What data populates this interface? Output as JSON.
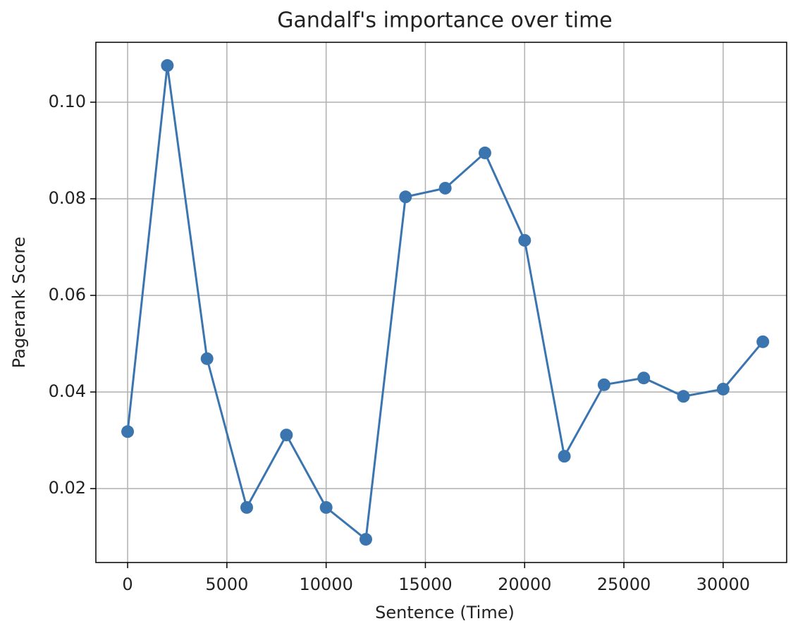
{
  "chart_data": {
    "type": "line",
    "title": "Gandalf's importance over time",
    "x_label": "Sentence (Time)",
    "y_label": "Pagerank Score",
    "x": [
      0,
      2000,
      4000,
      6000,
      8000,
      10000,
      12000,
      14000,
      16000,
      18000,
      20000,
      22000,
      24000,
      26000,
      28000,
      30000,
      32000
    ],
    "series": [
      {
        "name": "Gandalf",
        "color": "#3b75af",
        "values": [
          0.0318,
          0.1076,
          0.0469,
          0.0161,
          0.0311,
          0.0161,
          0.0095,
          0.0804,
          0.0822,
          0.0895,
          0.0714,
          0.0267,
          0.0415,
          0.0429,
          0.0391,
          0.0406,
          0.0504
        ]
      }
    ],
    "xlim": [
      -1600,
      33200
    ],
    "ylim": [
      0.0047,
      0.1124
    ],
    "xticks": [
      0,
      5000,
      10000,
      15000,
      20000,
      25000,
      30000
    ],
    "yticks": [
      0.02,
      0.04,
      0.06,
      0.08,
      {
        "value": 0.1,
        "label": "0.10"
      }
    ],
    "grid": true,
    "marker": "circle"
  }
}
